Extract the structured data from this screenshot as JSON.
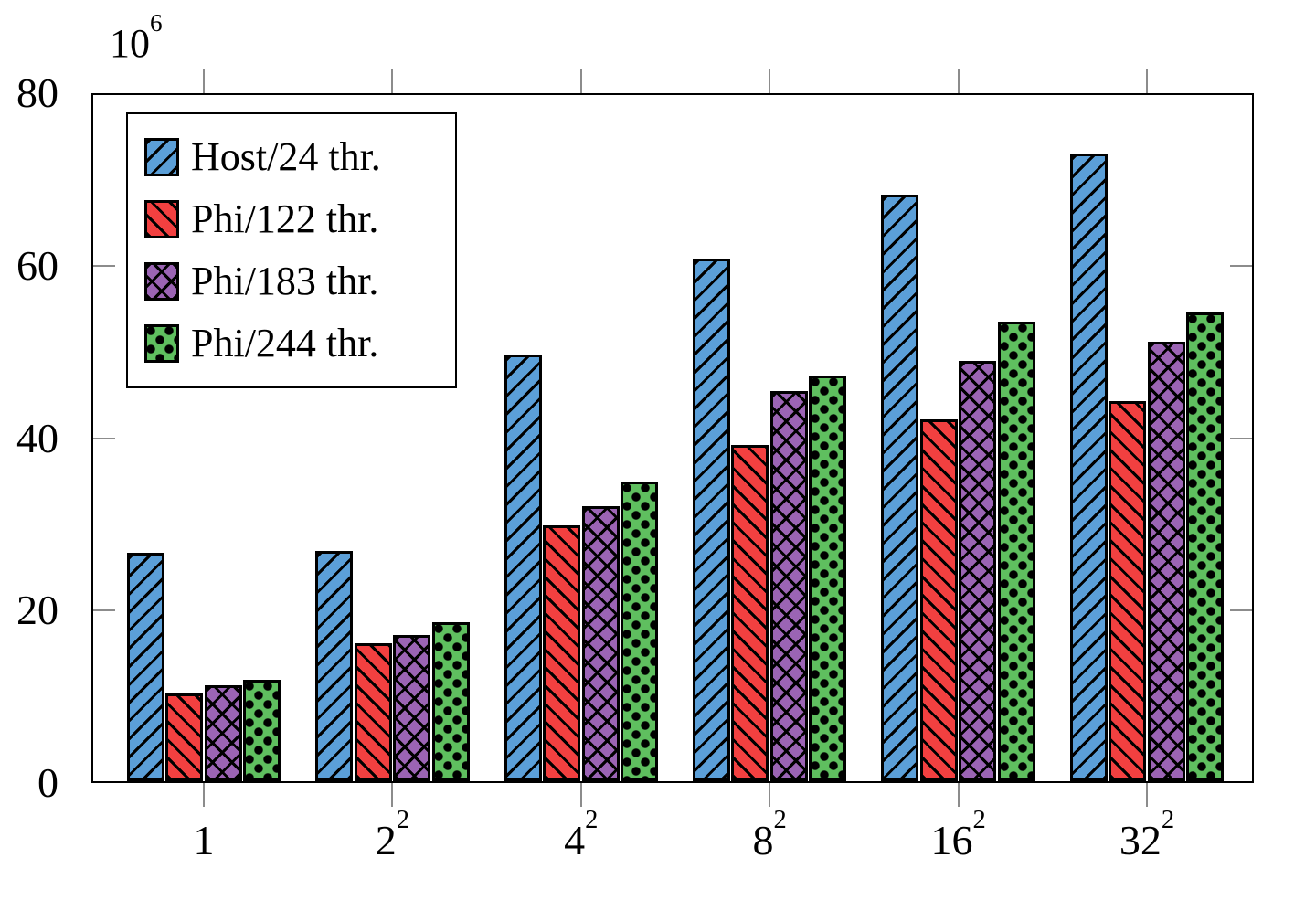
{
  "figure": {
    "background": "#ffffff"
  },
  "chart_data": {
    "type": "bar",
    "title": "",
    "xlabel": "",
    "ylabel": "",
    "grid": false,
    "legend_position": "top-left",
    "categories_display": [
      "1",
      "2^2",
      "4^2",
      "8^2",
      "16^2",
      "32^2"
    ],
    "categories": [
      {
        "text": "1",
        "sup": ""
      },
      {
        "text": "2",
        "sup": "2"
      },
      {
        "text": "4",
        "sup": "2"
      },
      {
        "text": "8",
        "sup": "2"
      },
      {
        "text": "16",
        "sup": "2"
      },
      {
        "text": "32",
        "sup": "2"
      }
    ],
    "y_axis": {
      "min": 0,
      "max": 80,
      "tick_step": 20,
      "tick_labels": [
        "0",
        "20",
        "40",
        "60",
        "80"
      ],
      "tick_values": [
        0,
        20,
        40,
        60,
        80
      ],
      "multiplier": {
        "base": "10",
        "exp": "6"
      }
    },
    "unit_scale": 1000000,
    "series": [
      {
        "name": "Host/24 thr.",
        "color": "#5b9fd8",
        "pattern": "diagonal-up",
        "values": [
          26.5,
          26.7,
          49.5,
          60.6,
          68.0,
          72.8
        ]
      },
      {
        "name": "Phi/122 thr.",
        "color": "#f24040",
        "pattern": "diagonal-down",
        "values": [
          10.2,
          16.0,
          29.7,
          39.0,
          42.0,
          44.1
        ]
      },
      {
        "name": "Phi/183 thr.",
        "color": "#9b64b4",
        "pattern": "crosshatch",
        "values": [
          11.1,
          17.0,
          31.9,
          45.2,
          48.7,
          51.0
        ]
      },
      {
        "name": "Phi/244 thr.",
        "color": "#5fbf5f",
        "pattern": "dots",
        "values": [
          11.8,
          18.4,
          34.8,
          47.0,
          53.3,
          54.4
        ]
      }
    ]
  }
}
